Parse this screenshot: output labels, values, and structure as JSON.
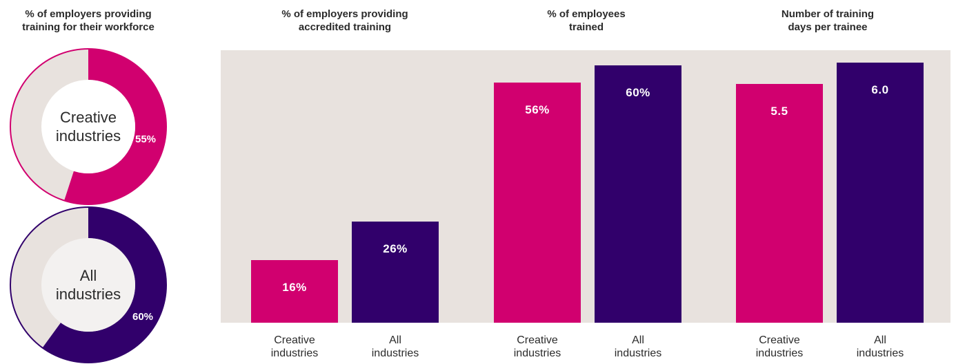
{
  "colors": {
    "creative": "#d1006f",
    "all": "#31006b",
    "ring_track": "#e8e2de",
    "center_fill": "#ffffff",
    "center_fill_all": "#f3f1f0",
    "panel": "#e8e2de"
  },
  "chart_data": [
    {
      "type": "pie",
      "title": "% of employers providing\ntraining for their workforce",
      "donuts": [
        {
          "name": "Creative\nindustries",
          "value": 55,
          "label": "55%"
        },
        {
          "name": "All\nindustries",
          "value": 60,
          "label": "60%"
        }
      ]
    },
    {
      "type": "bar",
      "title": "% of employers providing\naccredited training",
      "categories": [
        "Creative\nindustries",
        "All\nindustries"
      ],
      "values": [
        16,
        26
      ],
      "labels": [
        "16%",
        "26%"
      ]
    },
    {
      "type": "bar",
      "title": "% of employees\ntrained",
      "categories": [
        "Creative\nindustries",
        "All\nindustries"
      ],
      "values": [
        56,
        60
      ],
      "labels": [
        "56%",
        "60%"
      ]
    },
    {
      "type": "bar",
      "title": "Number of training\ndays per trainee",
      "categories": [
        "Creative\nindustries",
        "All\nindustries"
      ],
      "values": [
        5.5,
        6.0
      ],
      "labels": [
        "5.5",
        "6.0"
      ]
    }
  ]
}
